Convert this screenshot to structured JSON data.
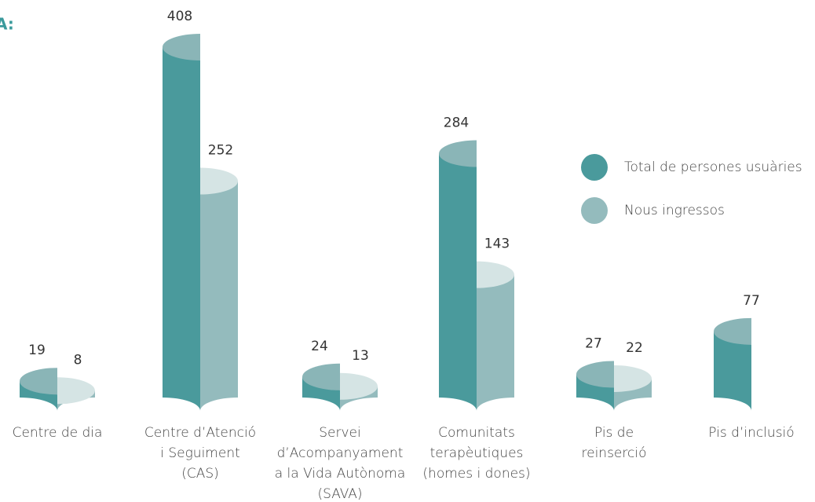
{
  "chart_data": {
    "type": "bar3d",
    "title": "A:",
    "categories": [
      [
        "Centre de dia"
      ],
      [
        "Centre d’Atenció",
        "i Seguiment",
        "(CAS)"
      ],
      [
        "Servei",
        "d’Acompanyament",
        "a la Vida Autònoma",
        "(SAVA)"
      ],
      [
        "Comunitats",
        "terapèutiques",
        "(homes i dones)"
      ],
      [
        "Pis de",
        "reinserció"
      ],
      [
        "Pis d’inclusió"
      ]
    ],
    "series": [
      {
        "name": "Total de persones usuàries",
        "color": "#4a9a9c",
        "top_color": "#8ab5b7",
        "values": [
          19,
          408,
          24,
          284,
          27,
          77
        ]
      },
      {
        "name": "Nous ingressos",
        "color": "#94bbbd",
        "top_color": "#d5e4e4",
        "values": [
          8,
          252,
          13,
          143,
          22,
          null
        ]
      }
    ],
    "legend": "right"
  }
}
